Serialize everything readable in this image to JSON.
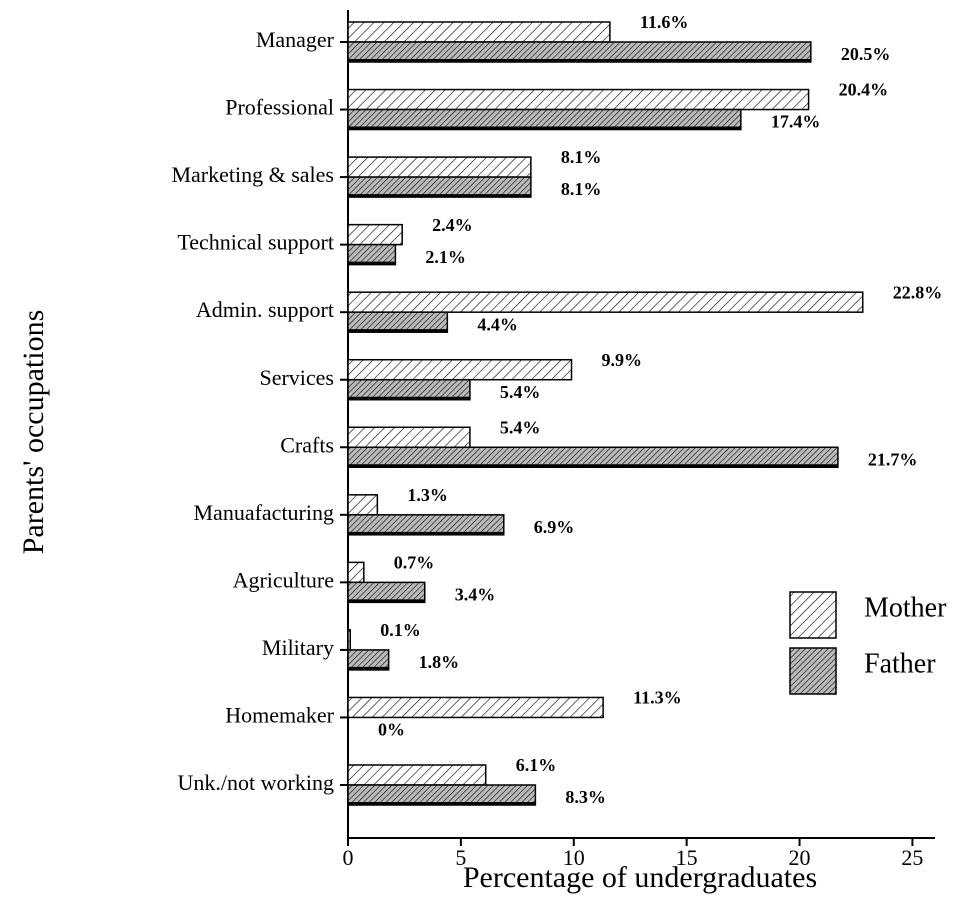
{
  "chart_data": {
    "type": "hbar",
    "categories": [
      "Manager",
      "Professional",
      "Marketing & sales",
      "Technical support",
      "Admin. support",
      "Services",
      "Crafts",
      "Manuafacturing",
      "Agriculture",
      "Military",
      "Homemaker",
      "Unk./not working"
    ],
    "series": [
      {
        "name": "Mother",
        "color": "#000000",
        "values": [
          11.6,
          20.4,
          8.1,
          2.4,
          22.8,
          9.9,
          5.4,
          1.3,
          0.7,
          0.1,
          11.3,
          6.1
        ],
        "value_labels": [
          "11.6%",
          "20.4%",
          "8.1%",
          "2.4%",
          "22.8%",
          "9.9%",
          "5.4%",
          "1.3%",
          "0.7%",
          "0.1%",
          "11.3%",
          "6.1%"
        ]
      },
      {
        "name": "Father",
        "color": "#000000",
        "values": [
          20.5,
          17.4,
          8.1,
          2.1,
          4.4,
          5.4,
          21.7,
          6.9,
          3.4,
          1.8,
          0,
          8.3
        ],
        "value_labels": [
          "20.5%",
          "17.4%",
          "8.1%",
          "2.1%",
          "4.4%",
          "5.4%",
          "21.7%",
          "6.9%",
          "3.4%",
          "1.8%",
          "0%",
          "8.3%"
        ]
      }
    ],
    "xlabel": "Percentage of undergraduates",
    "ylabel": "Parents' occupations",
    "xlim": [
      0,
      26
    ],
    "xticks": [
      0,
      5,
      10,
      15,
      20,
      25
    ],
    "legend": "right"
  }
}
